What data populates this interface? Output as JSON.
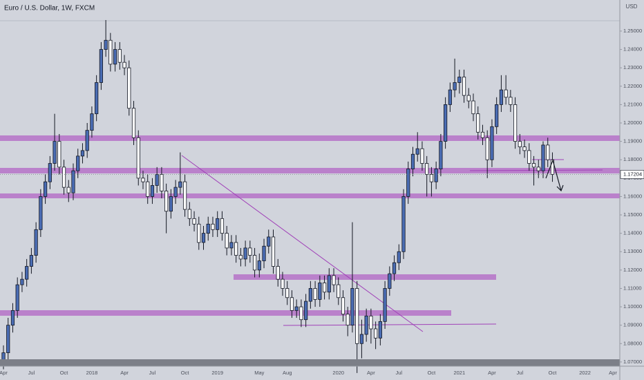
{
  "chart_data": {
    "type": "candlestick",
    "title": "Euro / U.S. Dollar, 1W, FXCM",
    "y_axis_label": "USD",
    "categories": [
      "Apr",
      null,
      null,
      null,
      null,
      null,
      "Jul",
      null,
      null,
      null,
      null,
      null,
      null,
      "Oct",
      null,
      null,
      null,
      null,
      null,
      "2018",
      null,
      null,
      null,
      null,
      null,
      null,
      "Apr",
      null,
      null,
      null,
      null,
      null,
      "Jul",
      null,
      null,
      null,
      null,
      null,
      null,
      "Oct",
      null,
      null,
      null,
      null,
      null,
      null,
      "2019",
      null,
      null,
      null,
      null,
      null,
      null,
      null,
      null,
      "May",
      null,
      null,
      null,
      null,
      null,
      "Aug",
      null,
      null,
      null,
      null,
      null,
      null,
      null,
      null,
      null,
      null,
      "2020",
      null,
      null,
      null,
      null,
      null,
      null,
      "Apr",
      null,
      null,
      null,
      null,
      null,
      "Jul",
      null,
      null,
      null,
      null,
      null,
      null,
      "Oct",
      null,
      null,
      null,
      null,
      null,
      "2021",
      null,
      null,
      null,
      null,
      null,
      null,
      "Apr",
      null,
      null,
      null,
      null,
      null,
      "Jul",
      null,
      null,
      null,
      null,
      null,
      null,
      "Oct",
      null,
      null,
      null,
      null,
      null,
      null,
      "2022",
      null,
      null,
      null,
      null,
      null,
      "Apr"
    ],
    "open": [
      1.07,
      1.075,
      1.09,
      1.098,
      1.112,
      1.115,
      1.122,
      1.128,
      1.142,
      1.16,
      1.168,
      1.178,
      1.19,
      1.176,
      1.165,
      1.162,
      1.174,
      1.182,
      1.185,
      1.196,
      1.205,
      1.222,
      1.24,
      1.245,
      1.232,
      1.24,
      1.233,
      1.23,
      1.208,
      1.192,
      1.17,
      1.168,
      1.16,
      1.166,
      1.172,
      1.163,
      1.152,
      1.16,
      1.165,
      1.168,
      1.153,
      1.148,
      1.145,
      1.135,
      1.14,
      1.145,
      1.142,
      1.148,
      1.14,
      1.132,
      1.135,
      1.128,
      1.126,
      1.132,
      1.128,
      1.12,
      1.125,
      1.133,
      1.138,
      1.122,
      1.115,
      1.11,
      1.105,
      1.098,
      1.1,
      1.093,
      1.103,
      1.11,
      1.104,
      1.113,
      1.108,
      1.117,
      1.112,
      1.105,
      1.096,
      1.09,
      1.11,
      1.08,
      1.085,
      1.095,
      1.088,
      1.083,
      1.092,
      1.11,
      1.118,
      1.124,
      1.13,
      1.16,
      1.175,
      1.183,
      1.186,
      1.178,
      1.172,
      1.168,
      1.175,
      1.19,
      1.21,
      1.218,
      1.222,
      1.225,
      1.215,
      1.212,
      1.205,
      1.195,
      1.192,
      1.18,
      1.198,
      1.21,
      1.218,
      1.214,
      1.21,
      1.19,
      1.187,
      1.185,
      1.178,
      1.176,
      1.174,
      1.188,
      1.18,
      null,
      null,
      null,
      null,
      null,
      null,
      null,
      null,
      null,
      null,
      null,
      null,
      null
    ],
    "high": [
      1.079,
      1.094,
      1.102,
      1.116,
      1.119,
      1.126,
      1.132,
      1.146,
      1.164,
      1.172,
      1.182,
      1.205,
      1.194,
      1.18,
      1.169,
      1.178,
      1.186,
      1.189,
      1.2,
      1.209,
      1.226,
      1.244,
      1.256,
      1.249,
      1.244,
      1.244,
      1.237,
      1.234,
      1.212,
      1.196,
      1.174,
      1.172,
      1.17,
      1.176,
      1.176,
      1.167,
      1.164,
      1.169,
      1.184,
      1.172,
      1.157,
      1.152,
      1.149,
      1.144,
      1.149,
      1.149,
      1.152,
      1.152,
      1.144,
      1.139,
      1.139,
      1.132,
      1.136,
      1.136,
      1.132,
      1.129,
      1.137,
      1.142,
      1.142,
      1.126,
      1.119,
      1.114,
      1.109,
      1.104,
      1.104,
      1.107,
      1.114,
      1.114,
      1.117,
      1.117,
      1.121,
      1.121,
      1.116,
      1.109,
      1.1,
      1.146,
      1.114,
      1.093,
      1.099,
      1.099,
      1.092,
      1.096,
      1.114,
      1.122,
      1.128,
      1.134,
      1.164,
      1.179,
      1.187,
      1.195,
      1.19,
      1.182,
      1.176,
      1.179,
      1.194,
      1.214,
      1.222,
      1.235,
      1.229,
      1.229,
      1.219,
      1.216,
      1.209,
      1.199,
      1.196,
      1.202,
      1.214,
      1.226,
      1.226,
      1.218,
      1.214,
      1.194,
      1.191,
      1.189,
      1.182,
      1.18,
      1.19,
      1.192,
      1.184,
      null,
      null,
      null,
      null,
      null,
      null,
      null,
      null,
      null,
      null,
      null,
      null,
      null
    ],
    "low": [
      1.066,
      1.071,
      1.086,
      1.094,
      1.108,
      1.111,
      1.118,
      1.124,
      1.138,
      1.156,
      1.164,
      1.174,
      1.172,
      1.161,
      1.157,
      1.158,
      1.17,
      1.178,
      1.181,
      1.192,
      1.201,
      1.218,
      1.236,
      1.228,
      1.228,
      1.229,
      1.226,
      1.204,
      1.188,
      1.166,
      1.164,
      1.156,
      1.156,
      1.162,
      1.159,
      1.14,
      1.148,
      1.156,
      1.161,
      1.149,
      1.144,
      1.141,
      1.131,
      1.131,
      1.136,
      1.138,
      1.138,
      1.136,
      1.128,
      1.128,
      1.124,
      1.122,
      1.122,
      1.124,
      1.116,
      1.116,
      1.121,
      1.129,
      1.118,
      1.111,
      1.106,
      1.101,
      1.094,
      1.094,
      1.089,
      1.089,
      1.099,
      1.1,
      1.1,
      1.104,
      1.104,
      1.108,
      1.101,
      1.092,
      1.084,
      1.086,
      1.064,
      1.072,
      1.081,
      1.08,
      1.077,
      1.079,
      1.088,
      1.106,
      1.114,
      1.12,
      1.126,
      1.156,
      1.171,
      1.179,
      1.174,
      1.16,
      1.16,
      1.164,
      1.171,
      1.186,
      1.206,
      1.214,
      1.216,
      1.211,
      1.208,
      1.201,
      1.191,
      1.188,
      1.17,
      1.176,
      1.194,
      1.206,
      1.21,
      1.206,
      1.186,
      1.183,
      1.181,
      1.174,
      1.166,
      1.17,
      1.17,
      1.176,
      1.168,
      null,
      null,
      null,
      null,
      null,
      null,
      null,
      null,
      null,
      null,
      null,
      null,
      null
    ],
    "close": [
      1.075,
      1.09,
      1.098,
      1.112,
      1.115,
      1.122,
      1.128,
      1.142,
      1.16,
      1.168,
      1.178,
      1.19,
      1.176,
      1.165,
      1.162,
      1.174,
      1.182,
      1.185,
      1.196,
      1.205,
      1.222,
      1.24,
      1.245,
      1.232,
      1.24,
      1.233,
      1.23,
      1.208,
      1.192,
      1.17,
      1.168,
      1.16,
      1.166,
      1.172,
      1.163,
      1.152,
      1.16,
      1.165,
      1.168,
      1.153,
      1.148,
      1.145,
      1.135,
      1.14,
      1.145,
      1.142,
      1.148,
      1.14,
      1.132,
      1.135,
      1.128,
      1.126,
      1.132,
      1.128,
      1.12,
      1.125,
      1.133,
      1.138,
      1.122,
      1.115,
      1.11,
      1.105,
      1.098,
      1.1,
      1.093,
      1.103,
      1.11,
      1.104,
      1.113,
      1.108,
      1.117,
      1.112,
      1.105,
      1.096,
      1.09,
      1.11,
      1.08,
      1.085,
      1.095,
      1.088,
      1.083,
      1.092,
      1.11,
      1.118,
      1.124,
      1.13,
      1.16,
      1.175,
      1.183,
      1.186,
      1.178,
      1.172,
      1.168,
      1.175,
      1.19,
      1.21,
      1.218,
      1.222,
      1.225,
      1.215,
      1.212,
      1.205,
      1.195,
      1.192,
      1.18,
      1.198,
      1.21,
      1.218,
      1.214,
      1.21,
      1.19,
      1.187,
      1.185,
      1.178,
      1.176,
      1.174,
      1.188,
      1.18,
      1.172,
      null,
      null,
      null,
      null,
      null,
      null,
      null,
      null,
      null,
      null,
      null,
      null,
      null
    ],
    "up_color": "#4a6cb3",
    "down_color": "#ffffff",
    "wick_color": "#131722",
    "ylim": [
      1.0677,
      1.2669
    ],
    "yticks": [
      {
        "value": 1.07,
        "label": "1.07000"
      },
      {
        "value": 1.08,
        "label": "1.08000"
      },
      {
        "value": 1.09,
        "label": "1.09000"
      },
      {
        "value": 1.1,
        "label": "1.10000"
      },
      {
        "value": 1.11,
        "label": "1.11000"
      },
      {
        "value": 1.12,
        "label": "1.12000"
      },
      {
        "value": 1.13,
        "label": "1.13000"
      },
      {
        "value": 1.14,
        "label": "1.14000"
      },
      {
        "value": 1.15,
        "label": "1.15000"
      },
      {
        "value": 1.16,
        "label": "1.16000"
      },
      {
        "value": 1.17,
        "label": "1.17000"
      },
      {
        "value": 1.18,
        "label": "1.18000"
      },
      {
        "value": 1.19,
        "label": "1.19000"
      },
      {
        "value": 1.2,
        "label": "1.20000"
      },
      {
        "value": 1.21,
        "label": "1.21000"
      },
      {
        "value": 1.22,
        "label": "1.22000"
      },
      {
        "value": 1.23,
        "label": "1.23000"
      },
      {
        "value": 1.24,
        "label": "1.24000"
      },
      {
        "value": 1.25,
        "label": "1.25000"
      }
    ],
    "last_price": 1.17204
  }
}
